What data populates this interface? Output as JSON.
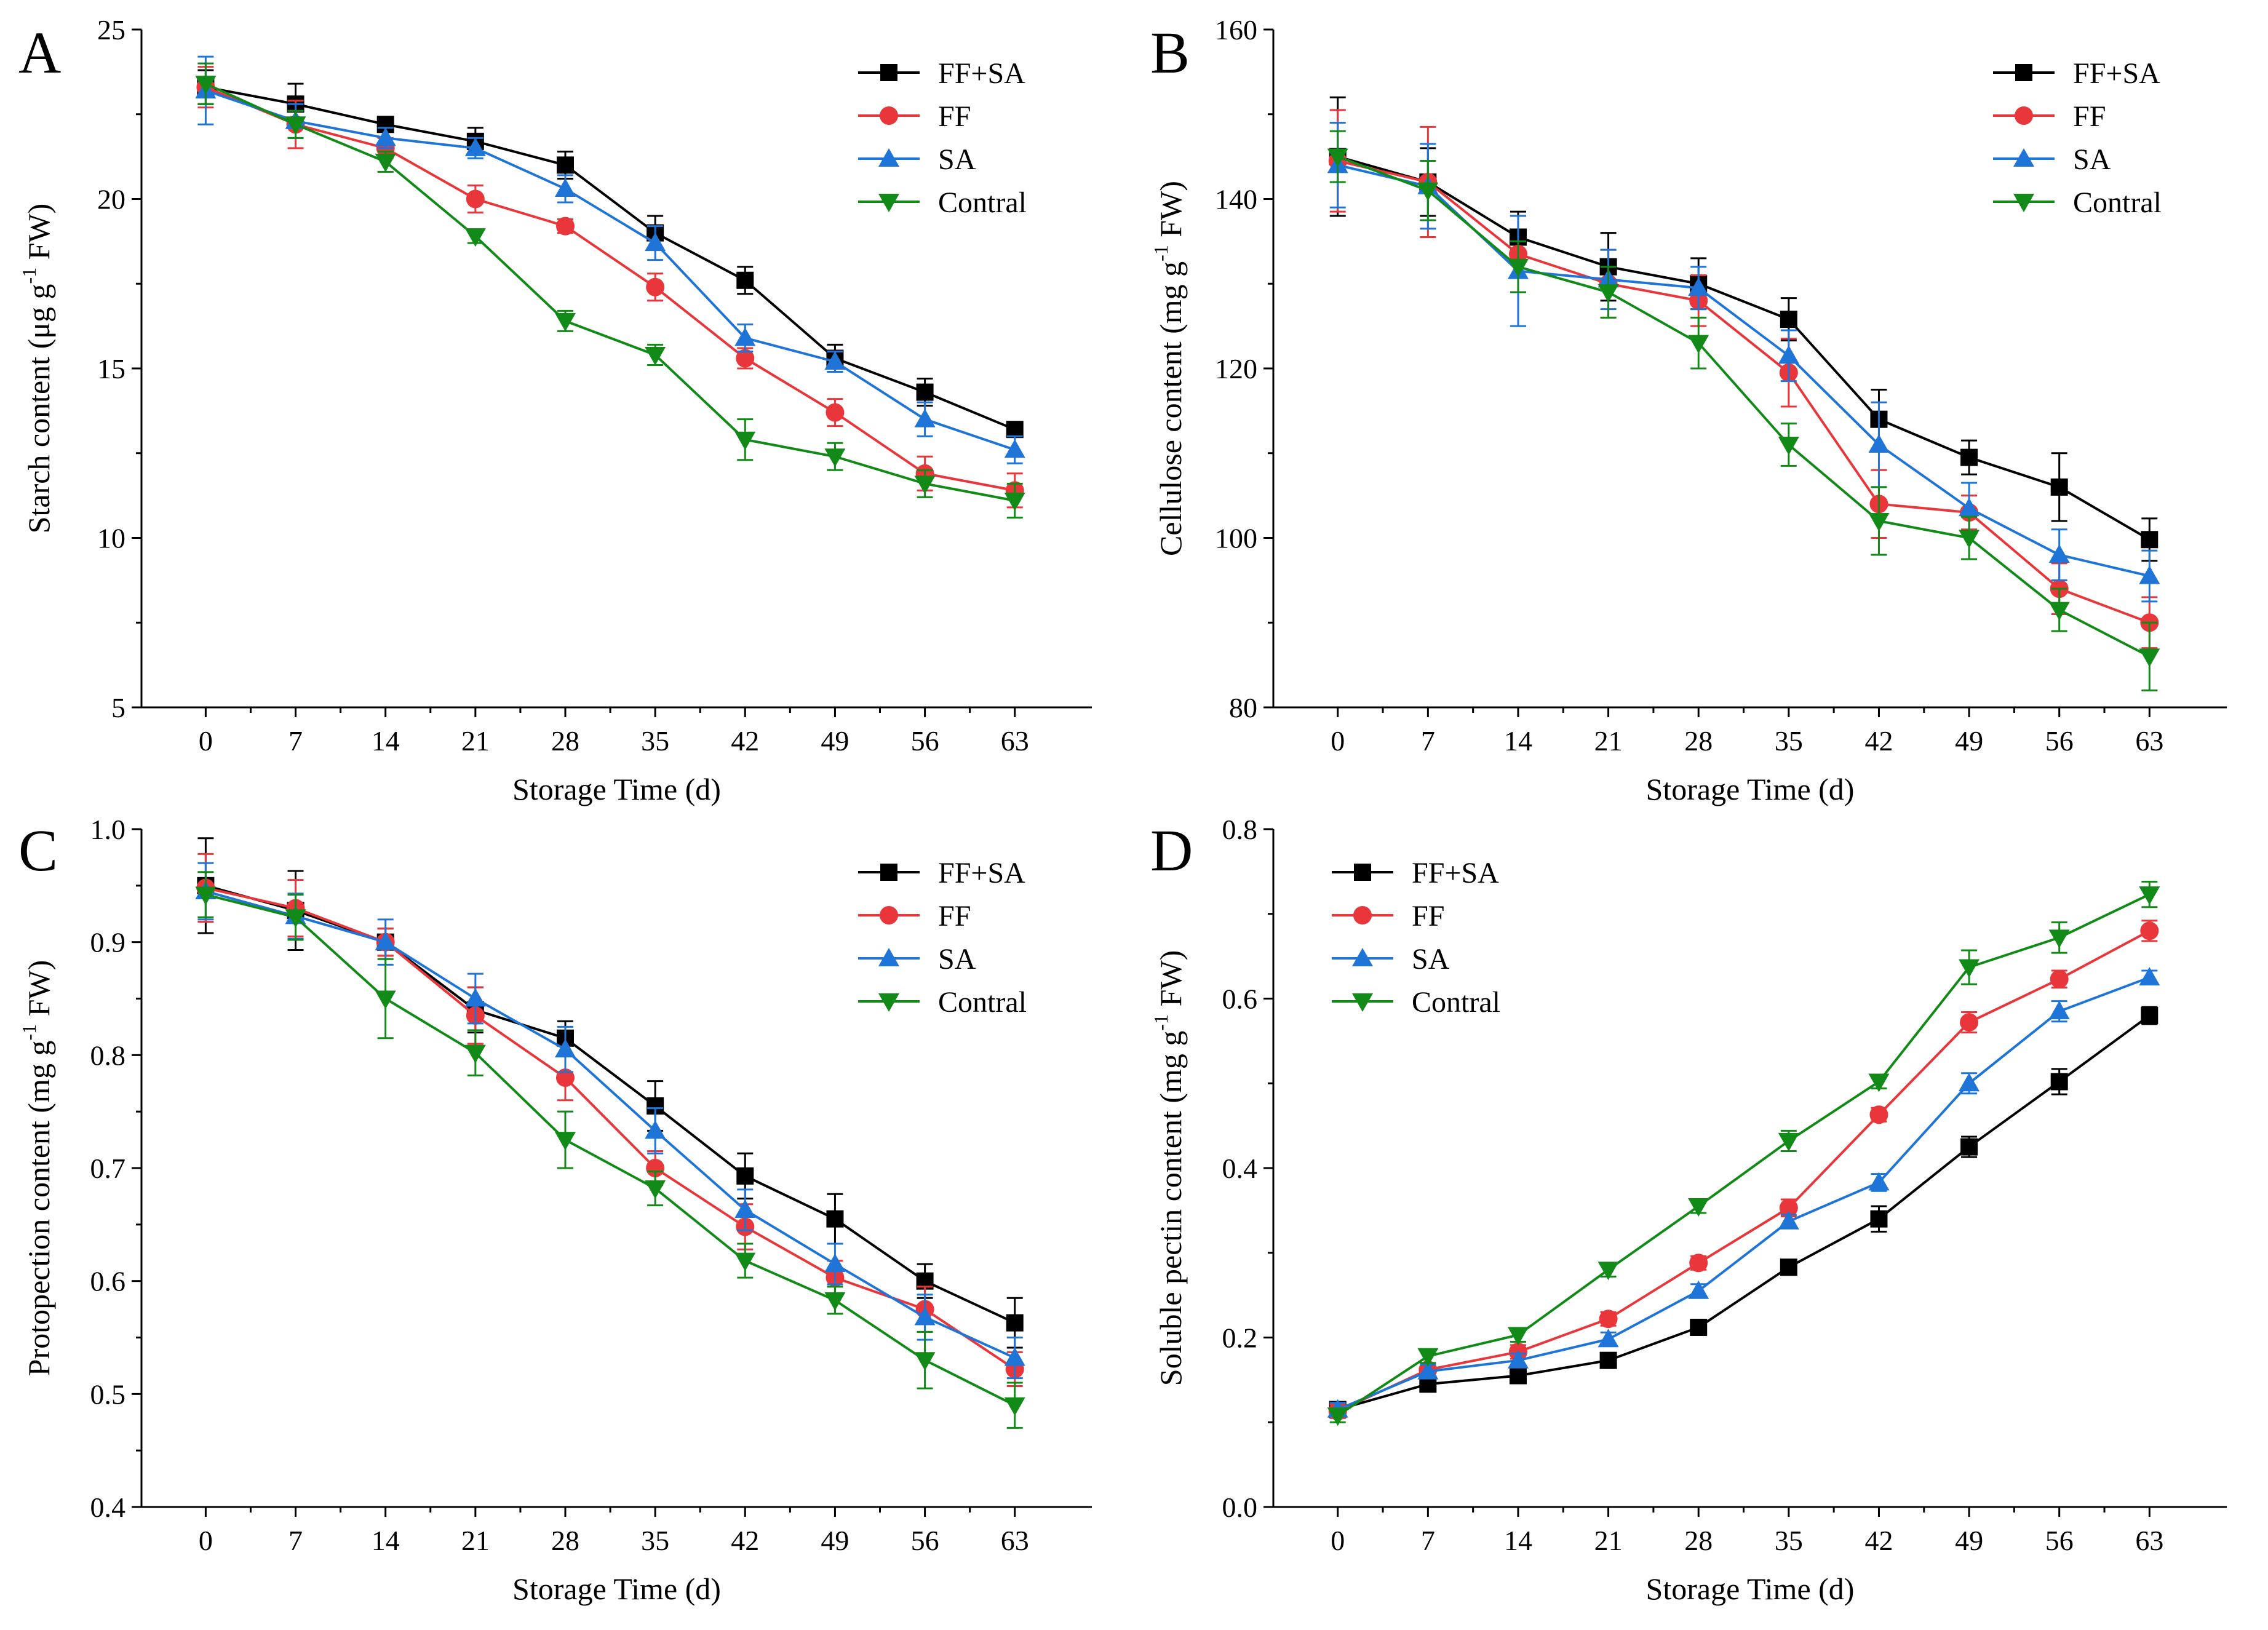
{
  "figure": {
    "title": ""
  },
  "series_styles": [
    {
      "name": "FF+SA",
      "color": "#000000",
      "marker": "square"
    },
    {
      "name": "FF",
      "color": "#e8363a",
      "marker": "circle"
    },
    {
      "name": "SA",
      "color": "#1f74d8",
      "marker": "triangle-up"
    },
    {
      "name": "Contral",
      "color": "#118a18",
      "marker": "triangle-down"
    }
  ],
  "chart_data": [
    {
      "panel": "A",
      "type": "line",
      "title": "",
      "xlabel": "Storage Time (d)",
      "ylabel": {
        "main": "Starch content (μg g",
        "sup": "-1",
        "tail": " FW)"
      },
      "x": [
        0,
        7,
        14,
        21,
        28,
        35,
        42,
        49,
        56,
        63
      ],
      "xlim": [
        -5,
        69
      ],
      "ylim": [
        5,
        25
      ],
      "yticks": [
        5,
        10,
        15,
        20,
        25
      ],
      "legend": "top-right",
      "series": [
        {
          "name": "FF+SA",
          "values": [
            23.3,
            22.8,
            22.2,
            21.7,
            21.0,
            19.0,
            17.6,
            15.3,
            14.3,
            13.2
          ],
          "errors": [
            0.5,
            0.6,
            0.2,
            0.4,
            0.4,
            0.5,
            0.4,
            0.4,
            0.4,
            0.2
          ]
        },
        {
          "name": "FF",
          "values": [
            23.3,
            22.2,
            21.5,
            20.0,
            19.2,
            17.4,
            15.3,
            13.7,
            11.9,
            11.4
          ],
          "errors": [
            0.6,
            0.7,
            0.3,
            0.4,
            0.2,
            0.4,
            0.3,
            0.4,
            0.5,
            0.5
          ]
        },
        {
          "name": "SA",
          "values": [
            23.2,
            22.3,
            21.8,
            21.5,
            20.3,
            18.7,
            15.9,
            15.2,
            13.5,
            12.6
          ],
          "errors": [
            1.0,
            0.5,
            0.3,
            0.3,
            0.4,
            0.5,
            0.4,
            0.3,
            0.5,
            0.4
          ]
        },
        {
          "name": "Contral",
          "values": [
            23.4,
            22.2,
            21.1,
            18.9,
            16.4,
            15.4,
            12.9,
            12.4,
            11.6,
            11.1
          ],
          "errors": [
            0.6,
            0.4,
            0.3,
            0.2,
            0.3,
            0.3,
            0.6,
            0.4,
            0.4,
            0.5
          ]
        }
      ]
    },
    {
      "panel": "B",
      "type": "line",
      "title": "",
      "xlabel": "Storage Time (d)",
      "ylabel": {
        "main": "Cellulose content (mg g",
        "sup": "-1",
        "tail": " FW)"
      },
      "x": [
        0,
        7,
        14,
        21,
        28,
        35,
        42,
        49,
        56,
        63
      ],
      "xlim": [
        -5,
        69
      ],
      "ylim": [
        80,
        160
      ],
      "yticks": [
        80,
        100,
        120,
        140,
        160
      ],
      "legend": "top-right",
      "series": [
        {
          "name": "FF+SA",
          "values": [
            145.0,
            142.0,
            135.5,
            132.0,
            130.0,
            125.8,
            114.0,
            109.5,
            106.0,
            99.8
          ],
          "errors": [
            7.0,
            4.0,
            3.0,
            4.0,
            3.0,
            2.5,
            3.5,
            2.0,
            4.0,
            2.5
          ]
        },
        {
          "name": "FF",
          "values": [
            144.5,
            142.0,
            133.5,
            130.0,
            128.0,
            119.5,
            104.0,
            103.0,
            94.0,
            90.0
          ],
          "errors": [
            6.0,
            6.5,
            4.5,
            4.0,
            3.0,
            4.0,
            4.0,
            2.0,
            3.0,
            3.0
          ]
        },
        {
          "name": "SA",
          "values": [
            144.0,
            141.5,
            131.5,
            130.5,
            129.5,
            121.5,
            111.0,
            103.5,
            98.0,
            95.5
          ],
          "errors": [
            5.0,
            5.0,
            6.5,
            3.5,
            2.5,
            3.0,
            5.0,
            3.0,
            3.0,
            3.0
          ]
        },
        {
          "name": "Contral",
          "values": [
            145.0,
            141.0,
            132.0,
            129.0,
            123.0,
            111.0,
            102.0,
            100.0,
            91.5,
            86.0
          ],
          "errors": [
            3.0,
            3.5,
            3.0,
            3.0,
            3.0,
            2.5,
            4.0,
            2.5,
            2.5,
            4.0
          ]
        }
      ]
    },
    {
      "panel": "C",
      "type": "line",
      "title": "",
      "xlabel": "Storage Time (d)",
      "ylabel": {
        "main": "Protopection content (mg g",
        "sup": "-1",
        "tail": " FW)"
      },
      "x": [
        0,
        7,
        14,
        21,
        28,
        35,
        42,
        49,
        56,
        63
      ],
      "xlim": [
        -5,
        69
      ],
      "ylim": [
        0.4,
        1.0
      ],
      "yticks": [
        0.4,
        0.5,
        0.6,
        0.7,
        0.8,
        0.9,
        1.0
      ],
      "legend": "top-right",
      "series": [
        {
          "name": "FF+SA",
          "values": [
            0.95,
            0.928,
            0.9,
            0.84,
            0.815,
            0.755,
            0.693,
            0.655,
            0.6,
            0.563
          ],
          "errors": [
            0.042,
            0.035,
            0.012,
            0.02,
            0.015,
            0.022,
            0.02,
            0.022,
            0.015,
            0.022
          ]
        },
        {
          "name": "FF",
          "values": [
            0.948,
            0.93,
            0.9,
            0.835,
            0.78,
            0.7,
            0.648,
            0.603,
            0.575,
            0.522
          ],
          "errors": [
            0.03,
            0.025,
            0.012,
            0.025,
            0.02,
            0.015,
            0.02,
            0.015,
            0.02,
            0.015
          ]
        },
        {
          "name": "SA",
          "values": [
            0.945,
            0.923,
            0.9,
            0.85,
            0.805,
            0.733,
            0.663,
            0.615,
            0.568,
            0.532
          ],
          "errors": [
            0.025,
            0.02,
            0.02,
            0.022,
            0.02,
            0.02,
            0.018,
            0.018,
            0.02,
            0.018
          ]
        },
        {
          "name": "Contral",
          "values": [
            0.942,
            0.922,
            0.85,
            0.802,
            0.725,
            0.682,
            0.618,
            0.583,
            0.53,
            0.49
          ],
          "errors": [
            0.02,
            0.02,
            0.035,
            0.02,
            0.025,
            0.015,
            0.015,
            0.012,
            0.025,
            0.02
          ]
        }
      ]
    },
    {
      "panel": "D",
      "type": "line",
      "title": "",
      "xlabel": "Storage Time (d)",
      "ylabel": {
        "main": "Soluble pectin content (mg g",
        "sup": "-1",
        "tail": " FW)"
      },
      "x": [
        0,
        7,
        14,
        21,
        28,
        35,
        42,
        49,
        56,
        63
      ],
      "xlim": [
        -5,
        69
      ],
      "ylim": [
        0.0,
        0.8
      ],
      "yticks": [
        0.0,
        0.2,
        0.4,
        0.6,
        0.8
      ],
      "legend": "top-left",
      "series": [
        {
          "name": "FF+SA",
          "values": [
            0.115,
            0.145,
            0.155,
            0.173,
            0.212,
            0.283,
            0.34,
            0.425,
            0.502,
            0.58
          ],
          "errors": [
            0.008,
            0.008,
            0.008,
            0.008,
            0.008,
            0.008,
            0.015,
            0.012,
            0.015,
            0.01
          ]
        },
        {
          "name": "FF",
          "values": [
            0.113,
            0.162,
            0.183,
            0.222,
            0.288,
            0.353,
            0.463,
            0.572,
            0.623,
            0.68
          ],
          "errors": [
            0.008,
            0.008,
            0.008,
            0.008,
            0.008,
            0.01,
            0.008,
            0.012,
            0.01,
            0.012
          ]
        },
        {
          "name": "SA",
          "values": [
            0.115,
            0.16,
            0.173,
            0.198,
            0.255,
            0.337,
            0.383,
            0.5,
            0.585,
            0.625
          ],
          "errors": [
            0.008,
            0.008,
            0.008,
            0.008,
            0.008,
            0.008,
            0.01,
            0.012,
            0.012,
            0.008
          ]
        },
        {
          "name": "Contral",
          "values": [
            0.108,
            0.178,
            0.203,
            0.28,
            0.355,
            0.432,
            0.502,
            0.637,
            0.672,
            0.723
          ],
          "errors": [
            0.008,
            0.008,
            0.008,
            0.008,
            0.008,
            0.012,
            0.008,
            0.02,
            0.018,
            0.015
          ]
        }
      ]
    }
  ]
}
